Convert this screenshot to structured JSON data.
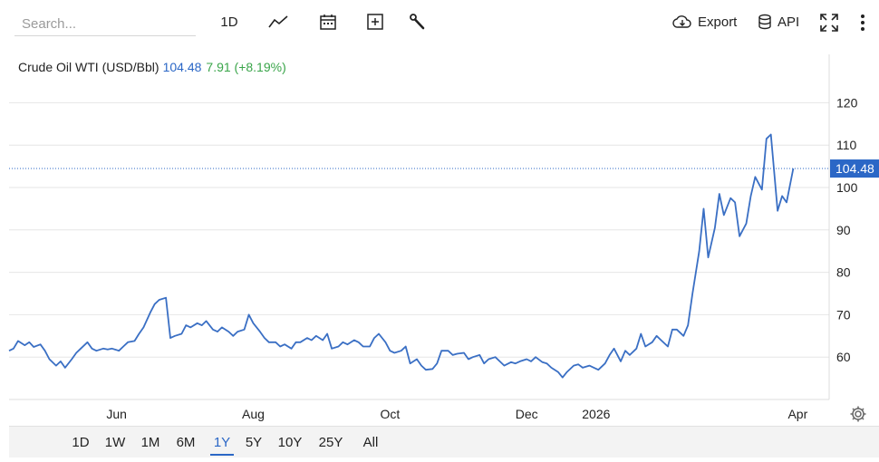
{
  "search": {
    "placeholder": "Search..."
  },
  "toolbar": {
    "interval_label": "1D",
    "export_label": "Export",
    "api_label": "API",
    "icons": [
      "line-chart-icon",
      "calendar-icon",
      "add-indicator-icon",
      "wrench-icon",
      "cloud-download-icon",
      "database-icon",
      "fullscreen-icon",
      "more-vertical-icon",
      "settings-gear-icon"
    ]
  },
  "legend": {
    "name": "Crude Oil WTI (USD/Bbl)",
    "price": "104.48",
    "change": "7.91 (+8.19%)"
  },
  "colors": {
    "line": "#3a6fc4",
    "price_tag": "#2b67c6",
    "change": "#3aa54a"
  },
  "range_buttons": [
    "1D",
    "1W",
    "1M",
    "6M",
    "1Y",
    "5Y",
    "10Y",
    "25Y",
    "All"
  ],
  "active_range": "1Y",
  "chart_data": {
    "type": "line",
    "title": "Crude Oil WTI (USD/Bbl)",
    "xlabel": "",
    "ylabel": "",
    "ylim": [
      50,
      125
    ],
    "yticks": [
      60,
      70,
      80,
      90,
      100,
      110,
      120
    ],
    "xtick_labels": [
      {
        "label": "Jun",
        "date": "2025-06-01"
      },
      {
        "label": "Aug",
        "date": "2025-08-01"
      },
      {
        "label": "Oct",
        "date": "2025-10-01"
      },
      {
        "label": "Dec",
        "date": "2025-12-01"
      },
      {
        "label": "2026",
        "date": "2026-01-01"
      },
      {
        "label": "Apr",
        "date": "2026-04-01"
      }
    ],
    "last_value_label": "104.48",
    "grid": true,
    "series": [
      {
        "points": [
          [
            "2025-04-14",
            61.5
          ],
          [
            "2025-04-16",
            62.0
          ],
          [
            "2025-04-18",
            63.8
          ],
          [
            "2025-04-21",
            62.8
          ],
          [
            "2025-04-23",
            63.5
          ],
          [
            "2025-04-25",
            62.4
          ],
          [
            "2025-04-28",
            63.0
          ],
          [
            "2025-04-30",
            61.5
          ],
          [
            "2025-05-02",
            59.5
          ],
          [
            "2025-05-05",
            58.0
          ],
          [
            "2025-05-07",
            59.0
          ],
          [
            "2025-05-09",
            57.5
          ],
          [
            "2025-05-12",
            59.5
          ],
          [
            "2025-05-14",
            61.0
          ],
          [
            "2025-05-16",
            62.0
          ],
          [
            "2025-05-19",
            63.5
          ],
          [
            "2025-05-21",
            62.0
          ],
          [
            "2025-05-23",
            61.5
          ],
          [
            "2025-05-26",
            62.0
          ],
          [
            "2025-05-28",
            61.8
          ],
          [
            "2025-05-30",
            62.0
          ],
          [
            "2025-06-02",
            61.5
          ],
          [
            "2025-06-04",
            62.5
          ],
          [
            "2025-06-06",
            63.5
          ],
          [
            "2025-06-09",
            63.8
          ],
          [
            "2025-06-11",
            65.5
          ],
          [
            "2025-06-13",
            67.0
          ],
          [
            "2025-06-16",
            70.5
          ],
          [
            "2025-06-18",
            72.5
          ],
          [
            "2025-06-20",
            73.5
          ],
          [
            "2025-06-23",
            74.0
          ],
          [
            "2025-06-25",
            64.5
          ],
          [
            "2025-06-27",
            65.0
          ],
          [
            "2025-06-30",
            65.5
          ],
          [
            "2025-07-02",
            67.5
          ],
          [
            "2025-07-04",
            67.0
          ],
          [
            "2025-07-07",
            68.0
          ],
          [
            "2025-07-09",
            67.5
          ],
          [
            "2025-07-11",
            68.5
          ],
          [
            "2025-07-14",
            66.5
          ],
          [
            "2025-07-16",
            66.0
          ],
          [
            "2025-07-18",
            67.0
          ],
          [
            "2025-07-21",
            66.0
          ],
          [
            "2025-07-23",
            65.0
          ],
          [
            "2025-07-25",
            66.0
          ],
          [
            "2025-07-28",
            66.5
          ],
          [
            "2025-07-30",
            70.0
          ],
          [
            "2025-08-01",
            68.0
          ],
          [
            "2025-08-04",
            66.0
          ],
          [
            "2025-08-06",
            64.5
          ],
          [
            "2025-08-08",
            63.5
          ],
          [
            "2025-08-11",
            63.5
          ],
          [
            "2025-08-13",
            62.5
          ],
          [
            "2025-08-15",
            63.0
          ],
          [
            "2025-08-18",
            62.0
          ],
          [
            "2025-08-20",
            63.5
          ],
          [
            "2025-08-22",
            63.5
          ],
          [
            "2025-08-25",
            64.5
          ],
          [
            "2025-08-27",
            64.0
          ],
          [
            "2025-08-29",
            65.0
          ],
          [
            "2025-09-01",
            64.0
          ],
          [
            "2025-09-03",
            65.5
          ],
          [
            "2025-09-05",
            62.0
          ],
          [
            "2025-09-08",
            62.5
          ],
          [
            "2025-09-10",
            63.5
          ],
          [
            "2025-09-12",
            63.0
          ],
          [
            "2025-09-15",
            64.0
          ],
          [
            "2025-09-17",
            63.5
          ],
          [
            "2025-09-19",
            62.5
          ],
          [
            "2025-09-22",
            62.5
          ],
          [
            "2025-09-24",
            64.5
          ],
          [
            "2025-09-26",
            65.5
          ],
          [
            "2025-09-29",
            63.5
          ],
          [
            "2025-10-01",
            61.5
          ],
          [
            "2025-10-03",
            61.0
          ],
          [
            "2025-10-06",
            61.5
          ],
          [
            "2025-10-08",
            62.5
          ],
          [
            "2025-10-10",
            58.5
          ],
          [
            "2025-10-13",
            59.5
          ],
          [
            "2025-10-15",
            58.0
          ],
          [
            "2025-10-17",
            57.0
          ],
          [
            "2025-10-20",
            57.2
          ],
          [
            "2025-10-22",
            58.5
          ],
          [
            "2025-10-24",
            61.5
          ],
          [
            "2025-10-27",
            61.5
          ],
          [
            "2025-10-29",
            60.5
          ],
          [
            "2025-10-31",
            60.8
          ],
          [
            "2025-11-03",
            61.0
          ],
          [
            "2025-11-05",
            59.5
          ],
          [
            "2025-11-07",
            60.0
          ],
          [
            "2025-11-10",
            60.5
          ],
          [
            "2025-11-12",
            58.5
          ],
          [
            "2025-11-14",
            59.5
          ],
          [
            "2025-11-17",
            60.0
          ],
          [
            "2025-11-19",
            59.0
          ],
          [
            "2025-11-21",
            58.0
          ],
          [
            "2025-11-24",
            58.8
          ],
          [
            "2025-11-26",
            58.5
          ],
          [
            "2025-11-28",
            59.0
          ],
          [
            "2025-12-01",
            59.5
          ],
          [
            "2025-12-03",
            59.0
          ],
          [
            "2025-12-05",
            60.0
          ],
          [
            "2025-12-08",
            58.8
          ],
          [
            "2025-12-10",
            58.5
          ],
          [
            "2025-12-12",
            57.5
          ],
          [
            "2025-12-15",
            56.5
          ],
          [
            "2025-12-17",
            55.2
          ],
          [
            "2025-12-19",
            56.5
          ],
          [
            "2025-12-22",
            58.0
          ],
          [
            "2025-12-24",
            58.3
          ],
          [
            "2025-12-26",
            57.5
          ],
          [
            "2025-12-29",
            58.0
          ],
          [
            "2025-12-31",
            57.5
          ],
          [
            "2026-01-02",
            57.0
          ],
          [
            "2026-01-05",
            58.5
          ],
          [
            "2026-01-07",
            60.5
          ],
          [
            "2026-01-09",
            62.0
          ],
          [
            "2026-01-12",
            59.0
          ],
          [
            "2026-01-14",
            61.5
          ],
          [
            "2026-01-16",
            60.5
          ],
          [
            "2026-01-19",
            62.0
          ],
          [
            "2026-01-21",
            65.5
          ],
          [
            "2026-01-23",
            62.5
          ],
          [
            "2026-01-26",
            63.5
          ],
          [
            "2026-01-28",
            65.0
          ],
          [
            "2026-01-30",
            64.0
          ],
          [
            "2026-02-02",
            62.5
          ],
          [
            "2026-02-04",
            66.5
          ],
          [
            "2026-02-06",
            66.5
          ],
          [
            "2026-02-09",
            65.0
          ],
          [
            "2026-02-11",
            67.5
          ],
          [
            "2026-02-13",
            75.0
          ],
          [
            "2026-02-16",
            85.0
          ],
          [
            "2026-02-18",
            95.0
          ],
          [
            "2026-02-20",
            83.5
          ],
          [
            "2026-02-23",
            90.5
          ],
          [
            "2026-02-25",
            98.5
          ],
          [
            "2026-02-27",
            93.5
          ],
          [
            "2026-03-02",
            97.5
          ],
          [
            "2026-03-04",
            96.5
          ],
          [
            "2026-03-06",
            88.5
          ],
          [
            "2026-03-09",
            91.5
          ],
          [
            "2026-03-11",
            98.0
          ],
          [
            "2026-03-13",
            102.5
          ],
          [
            "2026-03-16",
            99.5
          ],
          [
            "2026-03-18",
            111.5
          ],
          [
            "2026-03-20",
            112.5
          ],
          [
            "2026-03-23",
            94.5
          ],
          [
            "2026-03-25",
            98.0
          ],
          [
            "2026-03-27",
            96.5
          ],
          [
            "2026-03-30",
            104.48
          ]
        ]
      }
    ]
  }
}
